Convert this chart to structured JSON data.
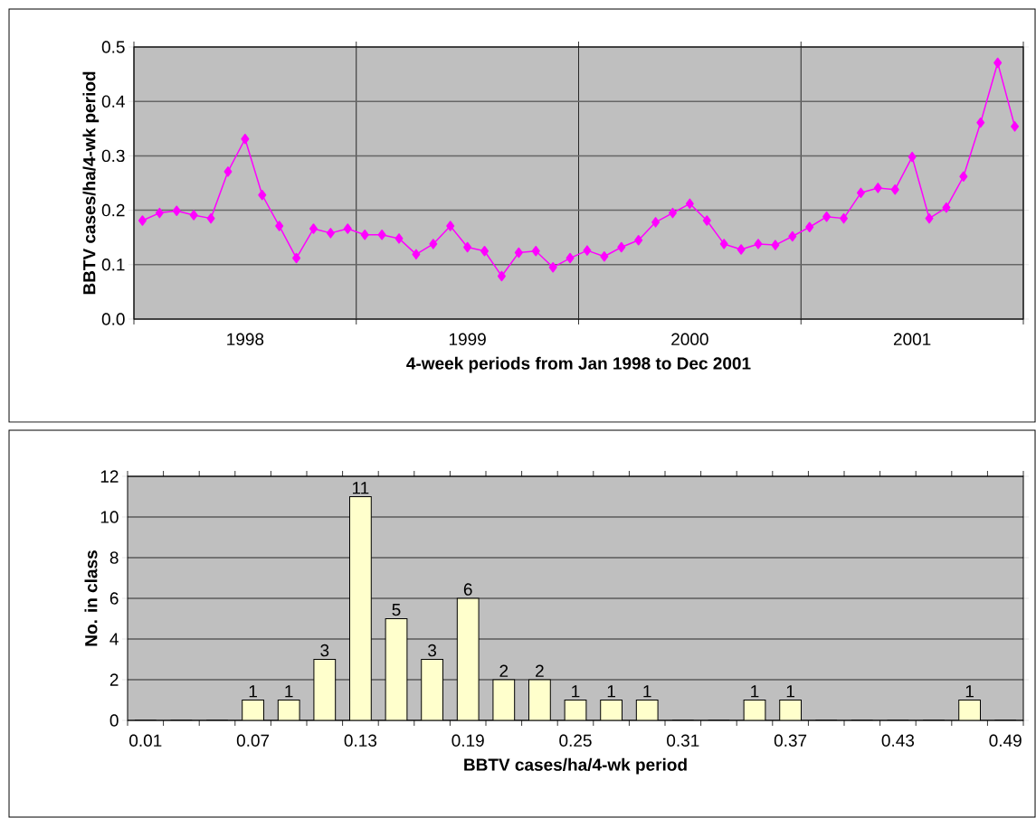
{
  "chart_data": [
    {
      "type": "line",
      "xlabel": "4-week periods from Jan 1998 to Dec 2001",
      "ylabel": "BBTV cases/ha/4-wk period",
      "categories": [
        null,
        null,
        null,
        null,
        null,
        null,
        "1998",
        null,
        null,
        null,
        null,
        null,
        null,
        null,
        null,
        null,
        null,
        null,
        null,
        "1999",
        null,
        null,
        null,
        null,
        null,
        null,
        null,
        null,
        null,
        null,
        null,
        null,
        "2000",
        null,
        null,
        null,
        null,
        null,
        null,
        null,
        null,
        null,
        null,
        null,
        null,
        "2001",
        null,
        null,
        null,
        null,
        null,
        null
      ],
      "values": [
        0.181,
        0.195,
        0.199,
        0.191,
        0.185,
        0.271,
        0.331,
        0.228,
        0.171,
        0.112,
        0.166,
        0.158,
        0.166,
        0.155,
        0.155,
        0.148,
        0.119,
        0.138,
        0.171,
        0.132,
        0.125,
        0.079,
        0.122,
        0.125,
        0.095,
        0.112,
        0.126,
        0.115,
        0.132,
        0.145,
        0.178,
        0.195,
        0.212,
        0.181,
        0.138,
        0.128,
        0.138,
        0.136,
        0.152,
        0.169,
        0.188,
        0.185,
        0.232,
        0.241,
        0.238,
        0.298,
        0.185,
        0.205,
        0.262,
        0.361,
        0.471,
        0.354
      ],
      "color": "#ff00ff",
      "marker": "diamond",
      "grid": true,
      "ylim": [
        0,
        0.5
      ],
      "yticks": [
        {
          "value": 0,
          "label": "0.0"
        },
        {
          "value": 0.1,
          "label": "0.1"
        },
        {
          "value": 0.2,
          "label": "0.2"
        },
        {
          "value": 0.3,
          "label": "0.3"
        },
        {
          "value": 0.4,
          "label": "0.4"
        },
        {
          "value": 0.5,
          "label": "0.5"
        }
      ]
    },
    {
      "type": "bar",
      "xlabel": "BBTV cases/ha/4-wk period",
      "ylabel": "No. in class",
      "categories": [
        "0.01",
        null,
        null,
        "0.07",
        null,
        null,
        "0.13",
        null,
        null,
        "0.19",
        null,
        null,
        "0.25",
        null,
        null,
        "0.31",
        null,
        null,
        "0.37",
        null,
        null,
        "0.43",
        null,
        null,
        "0.49"
      ],
      "values": [
        0,
        0,
        0,
        1,
        1,
        3,
        11,
        5,
        3,
        6,
        2,
        2,
        1,
        1,
        1,
        0,
        0,
        1,
        1,
        0,
        0,
        0,
        0,
        1,
        0
      ],
      "value_labels": [
        null,
        null,
        null,
        "1",
        "1",
        "3",
        "11",
        "5",
        "3",
        "6",
        "2",
        "2",
        "1",
        "1",
        "1",
        null,
        null,
        "1",
        "1",
        null,
        null,
        null,
        null,
        "1",
        null
      ],
      "color": "#ffffcc",
      "grid": "y",
      "ylim": [
        0,
        12
      ],
      "yticks": [
        0,
        2,
        4,
        6,
        8,
        10,
        12
      ]
    }
  ]
}
